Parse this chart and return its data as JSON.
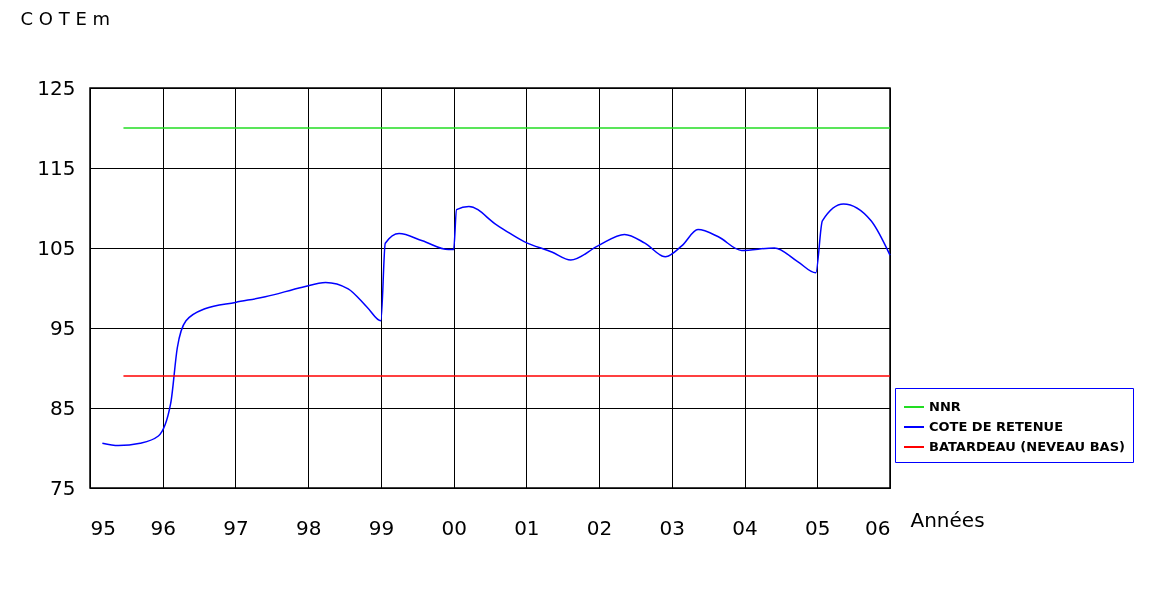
{
  "chart_data": {
    "type": "line",
    "ylabel": "C O T E m",
    "xlabel": "Années",
    "series": [
      {
        "name": "NNR",
        "color": "#22dd22",
        "x": [
          1995.46,
          2006
        ],
        "values": [
          120,
          120
        ]
      },
      {
        "name": "COTE DE RETENUE",
        "color": "#0000ff",
        "x": [
          1995.17,
          1995.39,
          1995.69,
          1995.94,
          1996.11,
          1996.2,
          1996.32,
          1996.58,
          1997.0,
          1997.41,
          1997.92,
          1998.24,
          1998.55,
          1998.81,
          1999.0,
          1999.06,
          1999.25,
          1999.57,
          1999.93,
          2000.0,
          2000.04,
          2000.21,
          2000.59,
          2000.97,
          2001.35,
          2001.61,
          2001.99,
          2002.35,
          2002.63,
          2002.91,
          2003.14,
          2003.36,
          2003.64,
          2003.96,
          2004.41,
          2004.73,
          2004.98,
          2005.07,
          2005.36,
          2005.74,
          2006.0
        ],
        "values": [
          80.6,
          80.3,
          80.6,
          81.5,
          85.6,
          92.5,
          95.9,
          97.4,
          98.2,
          98.9,
          100.1,
          100.7,
          99.9,
          97.6,
          95.9,
          105.6,
          106.8,
          105.9,
          104.8,
          104.8,
          109.8,
          110.2,
          107.9,
          105.8,
          104.5,
          103.5,
          105.3,
          106.7,
          105.6,
          103.9,
          105.3,
          107.3,
          106.4,
          104.7,
          105.0,
          103.3,
          101.9,
          108.4,
          110.5,
          108.4,
          104.1
        ]
      },
      {
        "name": "BATARDEAU (NEVEAU BAS)",
        "color": "#ff0000",
        "x": [
          1995.46,
          2006
        ],
        "values": [
          89,
          89
        ]
      }
    ],
    "xlim": [
      1995,
      2006
    ],
    "xticks": [
      {
        "value": 1995,
        "label": "95"
      },
      {
        "value": 1996,
        "label": "96"
      },
      {
        "value": 1997,
        "label": "97"
      },
      {
        "value": 1998,
        "label": "98"
      },
      {
        "value": 1999,
        "label": "99"
      },
      {
        "value": 2000,
        "label": "00"
      },
      {
        "value": 2001,
        "label": "01"
      },
      {
        "value": 2002,
        "label": "02"
      },
      {
        "value": 2003,
        "label": "03"
      },
      {
        "value": 2004,
        "label": "04"
      },
      {
        "value": 2005,
        "label": "05"
      },
      {
        "value": 2006,
        "label": "06"
      }
    ],
    "ylim": [
      75,
      125
    ],
    "yticks": [
      75,
      85,
      95,
      105,
      115,
      125
    ],
    "grid": true,
    "legend": "bottom right",
    "marker": "none",
    "line_style": "solid"
  }
}
